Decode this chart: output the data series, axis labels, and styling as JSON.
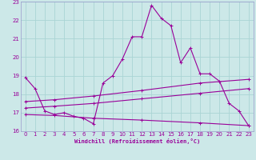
{
  "xlabel": "Windchill (Refroidissement éolien,°C)",
  "bg_color": "#cce8e8",
  "grid_color": "#aad4d4",
  "line_color": "#990099",
  "spine_color": "#9999cc",
  "xlim": [
    -0.5,
    23.5
  ],
  "ylim": [
    16,
    23
  ],
  "xticks": [
    0,
    1,
    2,
    3,
    4,
    5,
    6,
    7,
    8,
    9,
    10,
    11,
    12,
    13,
    14,
    15,
    16,
    17,
    18,
    19,
    20,
    21,
    22,
    23
  ],
  "yticks": [
    16,
    17,
    18,
    19,
    20,
    21,
    22,
    23
  ],
  "series1": [
    [
      0,
      18.9
    ],
    [
      1,
      18.3
    ],
    [
      2,
      17.1
    ],
    [
      3,
      16.9
    ],
    [
      4,
      17.0
    ],
    [
      5,
      16.8
    ],
    [
      6,
      16.7
    ],
    [
      7,
      16.4
    ],
    [
      8,
      18.6
    ],
    [
      9,
      19.0
    ],
    [
      10,
      19.9
    ],
    [
      11,
      21.1
    ],
    [
      12,
      21.1
    ],
    [
      13,
      22.8
    ],
    [
      14,
      22.1
    ],
    [
      15,
      21.7
    ],
    [
      16,
      19.7
    ],
    [
      17,
      20.5
    ],
    [
      18,
      19.1
    ],
    [
      19,
      19.1
    ],
    [
      20,
      18.7
    ],
    [
      21,
      17.5
    ],
    [
      22,
      17.1
    ],
    [
      23,
      16.3
    ]
  ],
  "linear1_pts": [
    [
      0,
      17.6
    ],
    [
      3,
      17.7
    ],
    [
      7,
      17.9
    ],
    [
      12,
      18.2
    ],
    [
      18,
      18.6
    ],
    [
      23,
      18.8
    ]
  ],
  "linear2_pts": [
    [
      0,
      17.25
    ],
    [
      3,
      17.35
    ],
    [
      7,
      17.5
    ],
    [
      12,
      17.75
    ],
    [
      18,
      18.05
    ],
    [
      23,
      18.3
    ]
  ],
  "linear3_pts": [
    [
      0,
      16.9
    ],
    [
      3,
      16.85
    ],
    [
      7,
      16.7
    ],
    [
      12,
      16.6
    ],
    [
      18,
      16.45
    ],
    [
      23,
      16.3
    ]
  ]
}
